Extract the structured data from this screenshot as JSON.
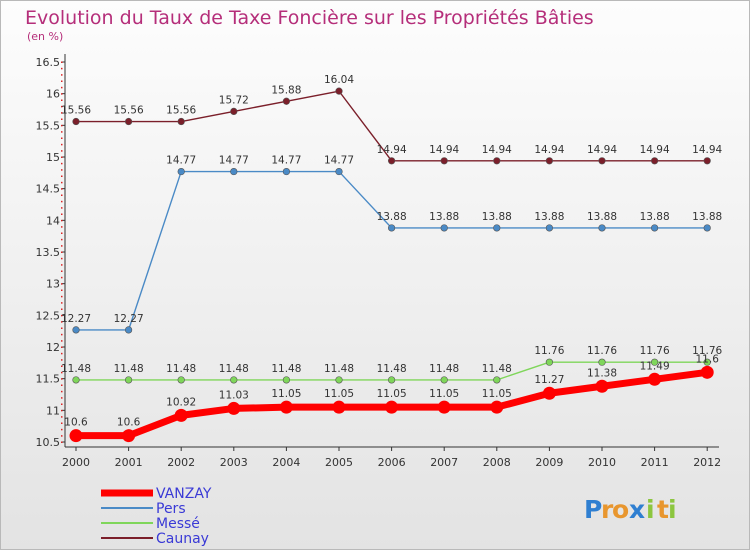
{
  "chart_data": {
    "type": "line",
    "title": "Evolution du Taux de Taxe Foncière sur les Propriétés Bâties",
    "subtitle": "(en %)",
    "x": [
      "2000",
      "2001",
      "2002",
      "2003",
      "2004",
      "2005",
      "2006",
      "2007",
      "2008",
      "2009",
      "2010",
      "2011",
      "2012"
    ],
    "ylim": [
      10.5,
      16.5
    ],
    "yticks": [
      "10.5",
      "11",
      "11.5",
      "12",
      "12.5",
      "13",
      "13.5",
      "14",
      "14.5",
      "15",
      "15.5",
      "16",
      "16.5"
    ],
    "grid": false,
    "legend_position": "bottom-left",
    "series": [
      {
        "name": "VANZAY",
        "color": "#ff0000",
        "values": [
          10.6,
          10.6,
          10.92,
          11.03,
          11.05,
          11.05,
          11.05,
          11.05,
          11.05,
          11.27,
          11.38,
          11.49,
          11.6
        ],
        "labels": [
          "10.6",
          "10.6",
          "10.92",
          "11.03",
          "11.05",
          "11.05",
          "11.05",
          "11.05",
          "11.05",
          "11.27",
          "11.38",
          "11.49",
          "11.6"
        ]
      },
      {
        "name": "Pers",
        "color": "#4a8ac6",
        "values": [
          12.27,
          12.27,
          14.77,
          14.77,
          14.77,
          14.77,
          13.88,
          13.88,
          13.88,
          13.88,
          13.88,
          13.88,
          13.88
        ],
        "labels": [
          "12.27",
          "12.27",
          "14.77",
          "14.77",
          "14.77",
          "14.77",
          "13.88",
          "13.88",
          "13.88",
          "13.88",
          "13.88",
          "13.88",
          "13.88"
        ]
      },
      {
        "name": "Messé",
        "color": "#7fd65a",
        "values": [
          11.48,
          11.48,
          11.48,
          11.48,
          11.48,
          11.48,
          11.48,
          11.48,
          11.48,
          11.76,
          11.76,
          11.76,
          11.76
        ],
        "labels": [
          "11.48",
          "11.48",
          "11.48",
          "11.48",
          "11.48",
          "11.48",
          "11.48",
          "11.48",
          "11.48",
          "11.76",
          "11.76",
          "11.76",
          "11.76"
        ]
      },
      {
        "name": "Caunay",
        "color": "#7b1f2a",
        "values": [
          15.56,
          15.56,
          15.56,
          15.72,
          15.88,
          16.04,
          14.94,
          14.94,
          14.94,
          14.94,
          14.94,
          14.94,
          14.94
        ],
        "labels": [
          "15.56",
          "15.56",
          "15.56",
          "15.72",
          "15.88",
          "16.04",
          "14.94",
          "14.94",
          "14.94",
          "14.94",
          "14.94",
          "14.94",
          "14.94"
        ]
      }
    ]
  },
  "logo": {
    "text": "Proxiti",
    "letters": [
      "P",
      "r",
      "o",
      "x",
      "i",
      "t",
      "i"
    ],
    "colors": [
      "#2f7fd1",
      "#e8962e",
      "#e8962e",
      "#2f7fd1",
      "#8cc63f",
      "#e8962e",
      "#8cc63f"
    ]
  }
}
